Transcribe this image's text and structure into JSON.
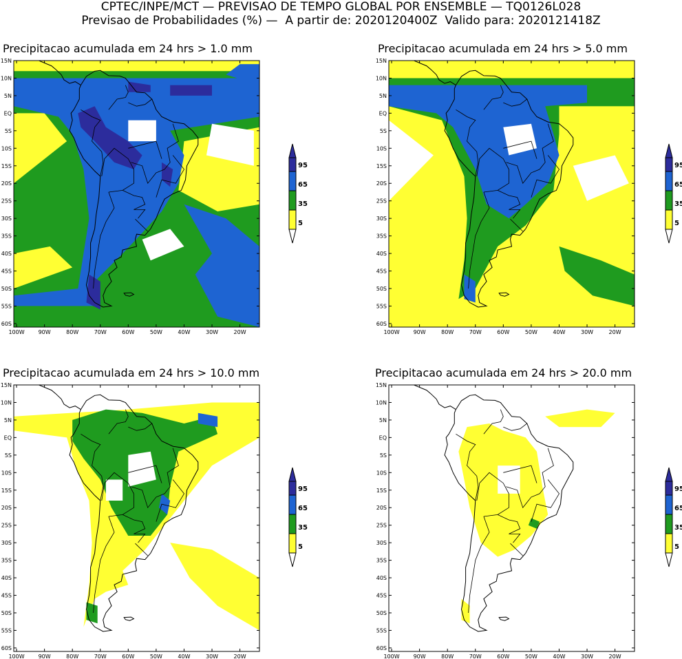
{
  "header": {
    "line1": "CPTEC/INPE/MCT — PREVISAO DE TEMPO GLOBAL POR ENSEMBLE — TQ0126L028",
    "line2": "Previsao de Probabilidades (%) —  A partir de: 2020120400Z  Valido para: 2020121418Z"
  },
  "axes": {
    "lat_labels": [
      "15N",
      "10N",
      "5N",
      "EQ",
      "5S",
      "10S",
      "15S",
      "20S",
      "25S",
      "30S",
      "35S",
      "40S",
      "45S",
      "50S",
      "55S",
      "60S"
    ],
    "lon_labels": [
      "100W",
      "90W",
      "80W",
      "70W",
      "60W",
      "50W",
      "40W",
      "30W",
      "20W"
    ]
  },
  "colorbar": {
    "labels": [
      "95",
      "65",
      "35",
      "5"
    ],
    "colors": {
      "c5": "#ffff33",
      "c35": "#1f9b1f",
      "c65": "#1e64d2",
      "c95": "#2c2c9c"
    }
  },
  "panels": [
    {
      "title": "Precipitacao acumulada em 24 hrs > 1.0 mm"
    },
    {
      "title": "Precipitacao acumulada em 24 hrs > 5.0 mm"
    },
    {
      "title": "Precipitacao acumulada em 24 hrs > 10.0 mm"
    },
    {
      "title": "Precipitacao acumulada em 24 hrs > 20.0 mm"
    }
  ]
}
